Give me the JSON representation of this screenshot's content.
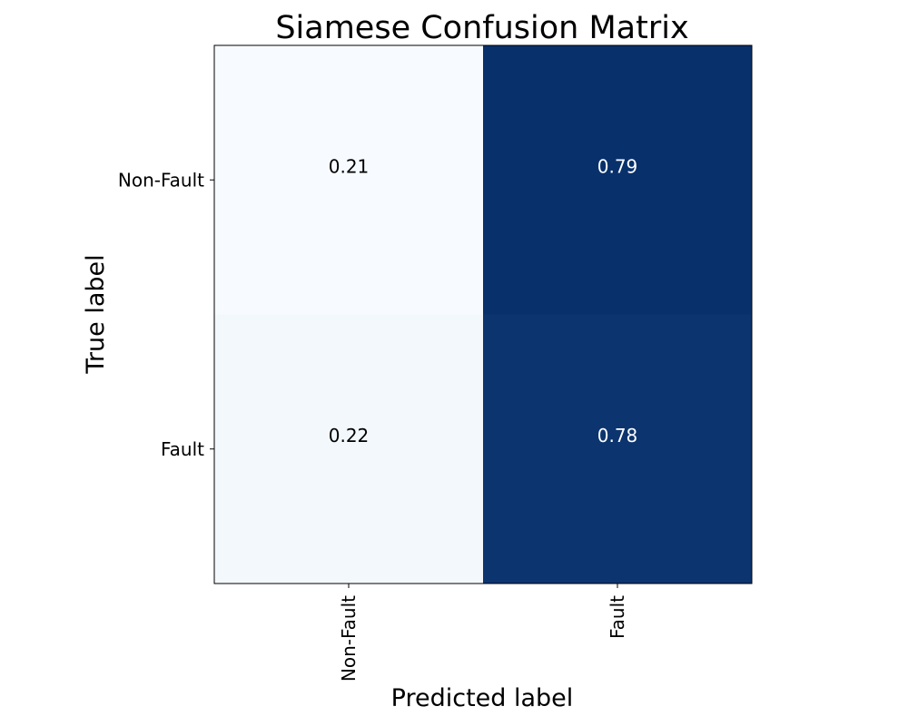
{
  "chart_data": {
    "type": "heatmap",
    "title": "Siamese Confusion Matrix",
    "xlabel": "Predicted label",
    "ylabel": "True label",
    "x_categories": [
      "Non-Fault",
      "Fault"
    ],
    "y_categories": [
      "Non-Fault",
      "Fault"
    ],
    "values": [
      [
        0.21,
        0.79
      ],
      [
        0.22,
        0.78
      ]
    ],
    "value_labels": [
      [
        "0.21",
        "0.79"
      ],
      [
        "0.22",
        "0.78"
      ]
    ],
    "colormap": "Blues",
    "color_low": "#f7fbff",
    "color_high": "#08306b",
    "text_light_color": "#ffffff",
    "text_dark_color": "#000000",
    "grid": false,
    "legend": false
  }
}
